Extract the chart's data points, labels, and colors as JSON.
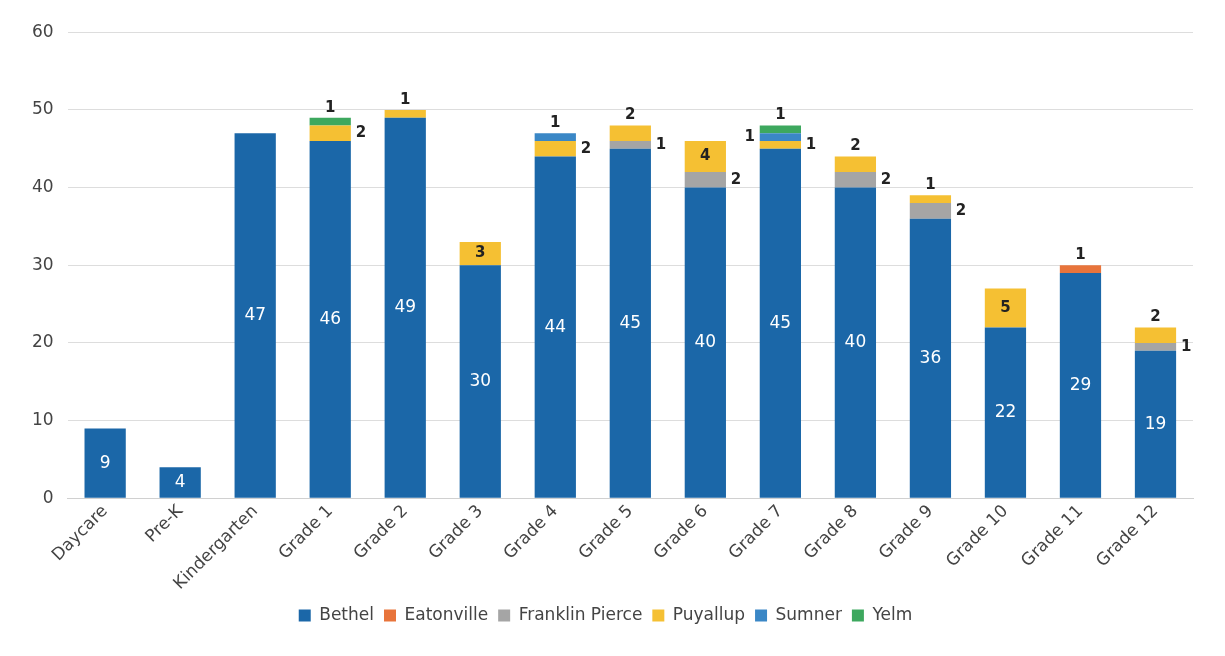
{
  "chart_data": {
    "type": "bar",
    "stacked": true,
    "categories": [
      "Daycare",
      "Pre-K",
      "Kindergarten",
      "Grade 1",
      "Grade 2",
      "Grade 3",
      "Grade 4",
      "Grade 5",
      "Grade 6",
      "Grade 7",
      "Grade 8",
      "Grade 9",
      "Grade 10",
      "Grade 11",
      "Grade 12"
    ],
    "series": [
      {
        "name": "Bethel",
        "color": "#1b67a8",
        "values": [
          9,
          4,
          47,
          46,
          49,
          30,
          44,
          45,
          40,
          45,
          40,
          36,
          22,
          29,
          19
        ]
      },
      {
        "name": "Eatonville",
        "color": "#e8743b",
        "values": [
          null,
          null,
          null,
          null,
          null,
          null,
          null,
          null,
          null,
          null,
          null,
          null,
          null,
          1,
          null
        ]
      },
      {
        "name": "Franklin Pierce",
        "color": "#a5a5a5",
        "values": [
          null,
          null,
          null,
          null,
          null,
          null,
          null,
          1,
          2,
          null,
          2,
          2,
          null,
          null,
          1
        ]
      },
      {
        "name": "Puyallup",
        "color": "#f5c033",
        "values": [
          null,
          null,
          null,
          2,
          1,
          3,
          2,
          2,
          4,
          1,
          2,
          1,
          5,
          null,
          2
        ]
      },
      {
        "name": "Sumner",
        "color": "#3a87c6",
        "values": [
          null,
          null,
          null,
          null,
          null,
          null,
          1,
          null,
          null,
          1,
          null,
          null,
          null,
          null,
          null
        ]
      },
      {
        "name": "Yelm",
        "color": "#3da85e",
        "values": [
          null,
          null,
          null,
          1,
          null,
          null,
          null,
          null,
          null,
          1,
          null,
          null,
          null,
          null,
          null
        ]
      }
    ],
    "ylim": [
      0,
      60
    ],
    "yticks": [
      0,
      10,
      20,
      30,
      40,
      50,
      60
    ],
    "grid": "y",
    "legend": "bottom",
    "data_labels": true
  }
}
